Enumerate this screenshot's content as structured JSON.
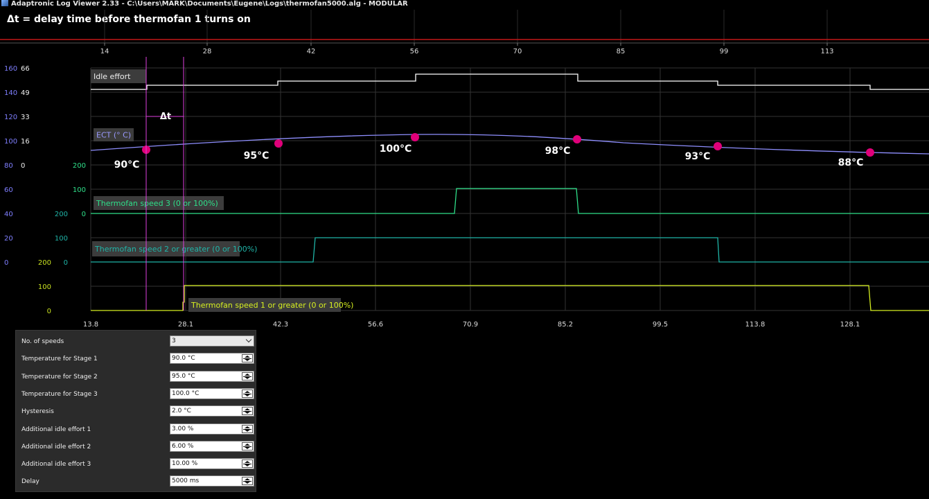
{
  "window": {
    "title": "Adaptronic Log Viewer 2.33 - C:\\Users\\MARK\\Documents\\Eugene\\Logs\\thermofan5000.alg - MODULAR"
  },
  "annotation": {
    "text": "Δt = delay time before thermofan 1 turns on",
    "delta_label": "Δt"
  },
  "top_axis": {
    "ticks": [
      "14",
      "28",
      "42",
      "56",
      "70",
      "85",
      "99",
      "113"
    ]
  },
  "bottom_axis": {
    "ticks": [
      "13.8",
      "28.1",
      "42.3",
      "56.6",
      "70.9",
      "85.2",
      "99.5",
      "113.8",
      "128.1"
    ]
  },
  "y_axes": {
    "blue": [
      "160",
      "140",
      "120",
      "100",
      "80",
      "60",
      "40",
      "20",
      "0"
    ],
    "white": [
      "66",
      "49",
      "33",
      "16",
      "0"
    ],
    "ect_green": [
      "200",
      "100",
      "0"
    ],
    "fan2_teal_left": "200",
    "fan2_teal": [
      "100",
      "0"
    ],
    "fan1_yellow_left": "200",
    "fan1_yellow": [
      "100",
      "0"
    ]
  },
  "series_labels": {
    "idle": "Idle effort",
    "ect": "ECT (° C)",
    "fan3": "Thermofan speed 3 (0 or 100%)",
    "fan2": "Thermofan speed 2 or greater (0 or 100%)",
    "fan1": "Thermofan speed 1 or greater (0 or 100%)"
  },
  "markers": [
    {
      "label": "90°C"
    },
    {
      "label": "95°C"
    },
    {
      "label": "100°C"
    },
    {
      "label": "98°C"
    },
    {
      "label": "93°C"
    },
    {
      "label": "88°C"
    }
  ],
  "colors": {
    "idle": "#ffffff",
    "ect": "#8f8fff",
    "fan3": "#2fe08a",
    "fan2": "#1fb5a8",
    "fan1": "#d7f020",
    "marker": "#e0007a",
    "cursor": "#e040e0",
    "red_line": "#c21818",
    "grid": "#333333"
  },
  "settings": {
    "rows": [
      {
        "label": "No. of speeds",
        "value": "3",
        "type": "select"
      },
      {
        "label": "Temperature for Stage 1",
        "value": "90.0 °C",
        "type": "spin"
      },
      {
        "label": "Temperature for Stage 2",
        "value": "95.0 °C",
        "type": "spin"
      },
      {
        "label": "Temperature for Stage 3",
        "value": "100.0 °C",
        "type": "spin"
      },
      {
        "label": "Hysteresis",
        "value": "2.0 °C",
        "type": "spin"
      },
      {
        "label": "Additional idle effort 1",
        "value": "3.00 %",
        "type": "spin"
      },
      {
        "label": "Additional idle effort 2",
        "value": "6.00 %",
        "type": "spin"
      },
      {
        "label": "Additional idle effort 3",
        "value": "10.00 %",
        "type": "spin"
      },
      {
        "label": "Delay",
        "value": "5000 ms",
        "type": "spin"
      }
    ]
  }
}
